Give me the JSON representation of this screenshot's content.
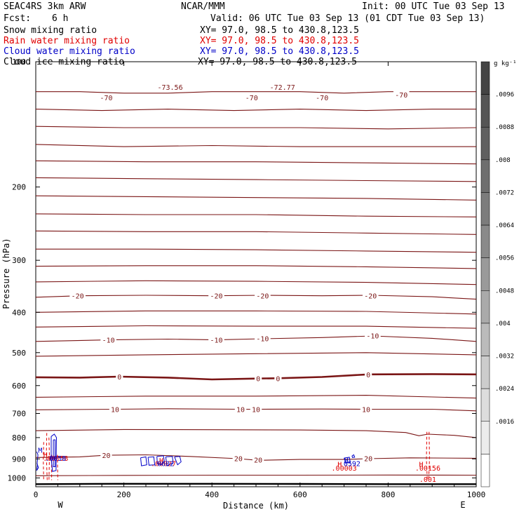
{
  "header": {
    "model": "SEAC4RS   3km ARW",
    "center": "NCAR/MMM",
    "init": "Init: 00 UTC Tue 03 Sep 13",
    "fcst_label": "Fcst:",
    "fcst_value": "6 h",
    "valid": "Valid: 06 UTC Tue 03 Sep 13 (01 CDT Tue 03 Sep 13)",
    "fields": [
      {
        "name": "Snow mixing ratio",
        "xy": "XY=  97.0, 98.5 to 430.8,123.5",
        "color": "#000000"
      },
      {
        "name": "Rain water mixing ratio",
        "xy": "XY=  97.0, 98.5 to 430.8,123.5",
        "color": "#e00000"
      },
      {
        "name": "Cloud water mixing ratio",
        "xy": "XY=  97.0, 98.5 to 430.8,123.5",
        "color": "#0000c8"
      },
      {
        "name": "Cloud ice mixing ratio",
        "xy": "XY=  97.0, 98.5 to 430.8,123.5",
        "color": "#000000"
      }
    ]
  },
  "chart_data": {
    "type": "contour cross-section",
    "xlabel": "Distance (km)",
    "ylabel": "Pressure (hPa)",
    "xlim": [
      0,
      1000
    ],
    "ylim": [
      100,
      1050
    ],
    "x_ticks": [
      0,
      200,
      400,
      600,
      800,
      1000
    ],
    "y_ticks": [
      200,
      300,
      400,
      500,
      600,
      700,
      800,
      900,
      1000
    ],
    "y_extra_label": "100",
    "y_scale": "log",
    "x_end_labels": {
      "left": "W",
      "right": "E"
    },
    "colorbar": {
      "unit": "g kg⁻¹",
      "labels": [
        ".0096",
        ".0088",
        ".008",
        ".0072",
        ".0064",
        ".0056",
        ".0048",
        ".004",
        ".0032",
        ".0024",
        ".0016"
      ],
      "shades": [
        "#444444",
        "#555555",
        "#606060",
        "#6e6e6e",
        "#7c7c7c",
        "#8a8a8a",
        "#9a9a9a",
        "#aaaaaa",
        "#bbbbbb",
        "#cccccc",
        "#dddddd",
        "#ececec",
        "#ffffff"
      ]
    },
    "temperature_labels": [
      {
        "text": "-73.56",
        "x": 305,
        "p": 115
      },
      {
        "text": "-72.77",
        "x": 560,
        "p": 115
      },
      {
        "text": "-70",
        "x": 160,
        "p": 122
      },
      {
        "text": "-70",
        "x": 490,
        "p": 122
      },
      {
        "text": "-70",
        "x": 650,
        "p": 122
      },
      {
        "text": "-70",
        "x": 830,
        "p": 120
      },
      {
        "text": "-20",
        "x": 95,
        "p": 365
      },
      {
        "text": "-20",
        "x": 410,
        "p": 365
      },
      {
        "text": "-20",
        "x": 515,
        "p": 365
      },
      {
        "text": "-20",
        "x": 760,
        "p": 365
      },
      {
        "text": "-10",
        "x": 165,
        "p": 466
      },
      {
        "text": "-10",
        "x": 410,
        "p": 466
      },
      {
        "text": "-10",
        "x": 515,
        "p": 462
      },
      {
        "text": "-10",
        "x": 765,
        "p": 455
      },
      {
        "text": "0",
        "x": 190,
        "p": 571
      },
      {
        "text": "0",
        "x": 505,
        "p": 576
      },
      {
        "text": "0",
        "x": 550,
        "p": 576
      },
      {
        "text": "0",
        "x": 755,
        "p": 564
      },
      {
        "text": "10",
        "x": 180,
        "p": 684
      },
      {
        "text": "10",
        "x": 465,
        "p": 684
      },
      {
        "text": "10",
        "x": 500,
        "p": 684
      },
      {
        "text": "10",
        "x": 750,
        "p": 684
      },
      {
        "text": "20",
        "x": 160,
        "p": 882
      },
      {
        "text": "20",
        "x": 460,
        "p": 898
      },
      {
        "text": "20",
        "x": 505,
        "p": 905
      },
      {
        "text": "20",
        "x": 755,
        "p": 898
      }
    ],
    "annotations": [
      {
        "text": "H",
        "x": 22,
        "p": 879,
        "series": "rain"
      },
      {
        "text": ".00058",
        "x": 45,
        "p": 896,
        "series": "rain"
      },
      {
        "text": "H",
        "x": 285,
        "p": 906,
        "series": "rain"
      },
      {
        "text": ".00027",
        "x": 290,
        "p": 922,
        "series": "rain"
      },
      {
        "text": "H",
        "x": 690,
        "p": 926,
        "series": "rain"
      },
      {
        "text": ".00003",
        "x": 700,
        "p": 946,
        "series": "rain"
      },
      {
        "text": "H",
        "x": 875,
        "p": 926,
        "series": "rain"
      },
      {
        "text": ".00156",
        "x": 890,
        "p": 946,
        "series": "rain"
      },
      {
        "text": ".001",
        "x": 890,
        "p": 1007,
        "series": "rain"
      },
      {
        "text": "M",
        "x": 10,
        "p": 856,
        "series": "cloud water"
      },
      {
        "text": ".0058",
        "x": 45,
        "p": 896,
        "series": "cloud water"
      },
      {
        "text": ".0602",
        "x": 290,
        "p": 922,
        "series": "cloud water"
      },
      {
        "text": "H",
        "x": 705,
        "p": 906,
        "series": "cloud water"
      },
      {
        "text": "0592",
        "x": 718,
        "p": 922,
        "series": "cloud water"
      }
    ],
    "isotherms": {
      "color": "#7a1515",
      "thick_level": 0,
      "lines": [
        [
          [
            0,
            118
          ],
          [
            100,
            118
          ],
          [
            200,
            119
          ],
          [
            300,
            119
          ],
          [
            400,
            118
          ],
          [
            500,
            118
          ],
          [
            600,
            118
          ],
          [
            700,
            119
          ],
          [
            800,
            118
          ],
          [
            900,
            118
          ],
          [
            1000,
            118
          ]
        ],
        [
          [
            0,
            130
          ],
          [
            150,
            131
          ],
          [
            300,
            130
          ],
          [
            450,
            131
          ],
          [
            600,
            130
          ],
          [
            750,
            131
          ],
          [
            900,
            130
          ],
          [
            1000,
            130
          ]
        ],
        [
          [
            0,
            143
          ],
          [
            200,
            144
          ],
          [
            400,
            144
          ],
          [
            600,
            144
          ],
          [
            800,
            145
          ],
          [
            1000,
            144
          ]
        ],
        [
          [
            0,
            158
          ],
          [
            200,
            160
          ],
          [
            400,
            159
          ],
          [
            600,
            160
          ],
          [
            800,
            160
          ],
          [
            1000,
            160
          ]
        ],
        [
          [
            0,
            173
          ],
          [
            250,
            174
          ],
          [
            500,
            174
          ],
          [
            750,
            175
          ],
          [
            1000,
            176
          ]
        ],
        [
          [
            0,
            190
          ],
          [
            250,
            191
          ],
          [
            500,
            192
          ],
          [
            750,
            193
          ],
          [
            1000,
            194
          ]
        ],
        [
          [
            0,
            210
          ],
          [
            250,
            211
          ],
          [
            500,
            212
          ],
          [
            750,
            213
          ],
          [
            1000,
            215
          ]
        ],
        [
          [
            0,
            232
          ],
          [
            250,
            233
          ],
          [
            500,
            233
          ],
          [
            750,
            235
          ],
          [
            1000,
            236
          ]
        ],
        [
          [
            0,
            255
          ],
          [
            250,
            256
          ],
          [
            500,
            256
          ],
          [
            750,
            258
          ],
          [
            1000,
            260
          ]
        ],
        [
          [
            0,
            282
          ],
          [
            250,
            282
          ],
          [
            500,
            283
          ],
          [
            750,
            285
          ],
          [
            1000,
            287
          ]
        ],
        [
          [
            0,
            310
          ],
          [
            250,
            309
          ],
          [
            500,
            309
          ],
          [
            750,
            311
          ],
          [
            1000,
            314
          ]
        ],
        [
          [
            0,
            338
          ],
          [
            250,
            336
          ],
          [
            500,
            337
          ],
          [
            750,
            339
          ],
          [
            1000,
            343
          ]
        ],
        [
          [
            0,
            368
          ],
          [
            100,
            365
          ],
          [
            250,
            364
          ],
          [
            400,
            365
          ],
          [
            520,
            364
          ],
          [
            650,
            365
          ],
          [
            760,
            364
          ],
          [
            900,
            367
          ],
          [
            1000,
            372
          ]
        ],
        [
          [
            0,
            400
          ],
          [
            250,
            397
          ],
          [
            500,
            397
          ],
          [
            750,
            398
          ],
          [
            1000,
            404
          ]
        ],
        [
          [
            0,
            434
          ],
          [
            250,
            431
          ],
          [
            500,
            432
          ],
          [
            750,
            432
          ],
          [
            1000,
            437
          ]
        ],
        [
          [
            0,
            470
          ],
          [
            165,
            466
          ],
          [
            300,
            464
          ],
          [
            410,
            466
          ],
          [
            515,
            463
          ],
          [
            650,
            460
          ],
          [
            765,
            456
          ],
          [
            900,
            462
          ],
          [
            1000,
            470
          ]
        ],
        [
          [
            0,
            510
          ],
          [
            250,
            506
          ],
          [
            500,
            503
          ],
          [
            750,
            500
          ],
          [
            1000,
            506
          ]
        ],
        [
          [
            0,
            573
          ],
          [
            100,
            574
          ],
          [
            190,
            571
          ],
          [
            300,
            574
          ],
          [
            400,
            580
          ],
          [
            505,
            577
          ],
          [
            550,
            576
          ],
          [
            650,
            572
          ],
          [
            755,
            564
          ],
          [
            900,
            563
          ],
          [
            1000,
            564
          ]
        ],
        [
          [
            0,
            640
          ],
          [
            250,
            636
          ],
          [
            500,
            636
          ],
          [
            750,
            633
          ],
          [
            1000,
            643
          ]
        ],
        [
          [
            0,
            686
          ],
          [
            180,
            684
          ],
          [
            300,
            682
          ],
          [
            465,
            684
          ],
          [
            500,
            684
          ],
          [
            650,
            683
          ],
          [
            750,
            684
          ],
          [
            900,
            684
          ],
          [
            1000,
            690
          ]
        ],
        [
          [
            0,
            770
          ],
          [
            200,
            765
          ],
          [
            400,
            766
          ],
          [
            600,
            767
          ],
          [
            750,
            770
          ],
          [
            840,
            778
          ],
          [
            870,
            792
          ],
          [
            890,
            785
          ],
          [
            950,
            790
          ],
          [
            1000,
            800
          ]
        ],
        [
          [
            0,
            893
          ],
          [
            100,
            890
          ],
          [
            160,
            882
          ],
          [
            250,
            880
          ],
          [
            350,
            888
          ],
          [
            460,
            899
          ],
          [
            505,
            907
          ],
          [
            600,
            903
          ],
          [
            700,
            903
          ],
          [
            755,
            899
          ],
          [
            850,
            895
          ],
          [
            1000,
            897
          ]
        ],
        [
          [
            0,
            988
          ],
          [
            200,
            986
          ],
          [
            400,
            985
          ],
          [
            600,
            985
          ],
          [
            800,
            984
          ],
          [
            1000,
            985
          ]
        ]
      ]
    },
    "surface_line": [
      [
        0,
        1035
      ],
      [
        180,
        1033
      ],
      [
        400,
        1033
      ],
      [
        600,
        1034
      ],
      [
        800,
        1035
      ],
      [
        1000,
        1035
      ]
    ],
    "rain_contours": [
      [
        [
          18,
          820
        ],
        [
          17,
          900
        ],
        [
          18,
          1015
        ]
      ],
      [
        [
          25,
          780
        ],
        [
          24,
          880
        ],
        [
          26,
          1012
        ]
      ],
      [
        [
          30,
          800
        ],
        [
          31,
          890
        ],
        [
          30,
          1014
        ]
      ],
      [
        [
          36,
          880
        ],
        [
          36,
          1012
        ]
      ],
      [
        [
          49,
          880
        ],
        [
          50,
          1012
        ]
      ],
      [
        [
          888,
          775
        ],
        [
          887,
          900
        ],
        [
          889,
          1013
        ]
      ],
      [
        [
          893,
          775
        ],
        [
          894,
          900
        ],
        [
          892,
          1013
        ]
      ]
    ],
    "cloud_contours": [
      [
        [
          2,
          865
        ],
        [
          5,
          880
        ],
        [
          3,
          925
        ],
        [
          6,
          945
        ],
        [
          2,
          960
        ],
        [
          4,
          925
        ]
      ],
      [
        [
          35,
          795
        ],
        [
          42,
          785
        ],
        [
          47,
          800
        ],
        [
          46,
          960
        ],
        [
          38,
          965
        ],
        [
          35,
          900
        ],
        [
          35,
          795
        ]
      ],
      [
        [
          40,
          810
        ],
        [
          44,
          810
        ],
        [
          44,
          940
        ],
        [
          40,
          940
        ],
        [
          40,
          810
        ]
      ],
      [
        [
          238,
          895
        ],
        [
          250,
          890
        ],
        [
          252,
          930
        ],
        [
          240,
          935
        ],
        [
          238,
          895
        ]
      ],
      [
        [
          255,
          892
        ],
        [
          268,
          890
        ],
        [
          270,
          930
        ],
        [
          257,
          932
        ],
        [
          255,
          892
        ]
      ],
      [
        [
          275,
          888
        ],
        [
          290,
          885
        ],
        [
          292,
          915
        ],
        [
          285,
          930
        ],
        [
          276,
          925
        ],
        [
          275,
          888
        ]
      ],
      [
        [
          295,
          890
        ],
        [
          310,
          888
        ],
        [
          312,
          920
        ],
        [
          298,
          935
        ],
        [
          295,
          890
        ]
      ],
      [
        [
          315,
          890
        ],
        [
          327,
          888
        ],
        [
          330,
          915
        ],
        [
          322,
          930
        ],
        [
          315,
          890
        ]
      ],
      [
        [
          700,
          896
        ],
        [
          712,
          892
        ],
        [
          714,
          918
        ],
        [
          704,
          920
        ],
        [
          700,
          896
        ]
      ],
      [
        [
          718,
          885
        ],
        [
          722,
          880
        ],
        [
          724,
          892
        ],
        [
          719,
          893
        ],
        [
          718,
          885
        ]
      ]
    ]
  }
}
